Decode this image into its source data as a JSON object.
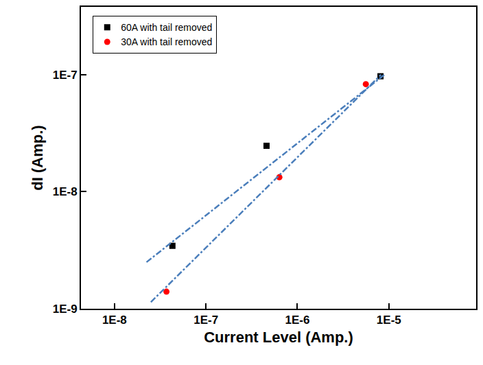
{
  "chart_data": {
    "type": "scatter",
    "log": true,
    "x_label": "Current Level (Amp.)",
    "y_label": "dI (Amp.)",
    "xlim": [
      4.3e-09,
      9e-05
    ],
    "ylim": [
      1e-09,
      3.8e-07
    ],
    "xticks": [
      {
        "value": 1e-08,
        "label": "1E-8"
      },
      {
        "value": 1e-07,
        "label": "1E-7"
      },
      {
        "value": 1e-06,
        "label": "1E-6"
      },
      {
        "value": 1e-05,
        "label": "1E-5"
      }
    ],
    "yticks": [
      {
        "value": 1e-09,
        "label": "1E-9"
      },
      {
        "value": 1e-08,
        "label": "1E-8"
      },
      {
        "value": 1e-07,
        "label": "1E-7"
      }
    ],
    "legend": "top left",
    "series": [
      {
        "name": "60A with tail removed",
        "type": "scatter",
        "marker": "square",
        "color": "#000000",
        "x": [
          4.3e-08,
          4.6e-07,
          8.1e-06
        ],
        "values": [
          3.45e-09,
          2.47e-08,
          9.7e-08
        ]
      },
      {
        "name": "30A with tail removed",
        "type": "scatter",
        "marker": "circle",
        "color": "#ff0000",
        "x": [
          3.7e-08,
          6.35e-07,
          5.6e-06
        ],
        "values": [
          1.4e-09,
          1.33e-08,
          8.3e-08
        ]
      },
      {
        "type": "line",
        "line_style": "dashdot",
        "color": "#4a7ebb",
        "x": [
          2.24e-08,
          8.95e-06
        ],
        "values": [
          2.5e-09,
          1e-07
        ]
      },
      {
        "type": "line",
        "line_style": "dashdot",
        "color": "#4a7ebb",
        "x": [
          2.5e-08,
          8.2e-06
        ],
        "values": [
          1.14e-09,
          1e-07
        ]
      }
    ]
  }
}
